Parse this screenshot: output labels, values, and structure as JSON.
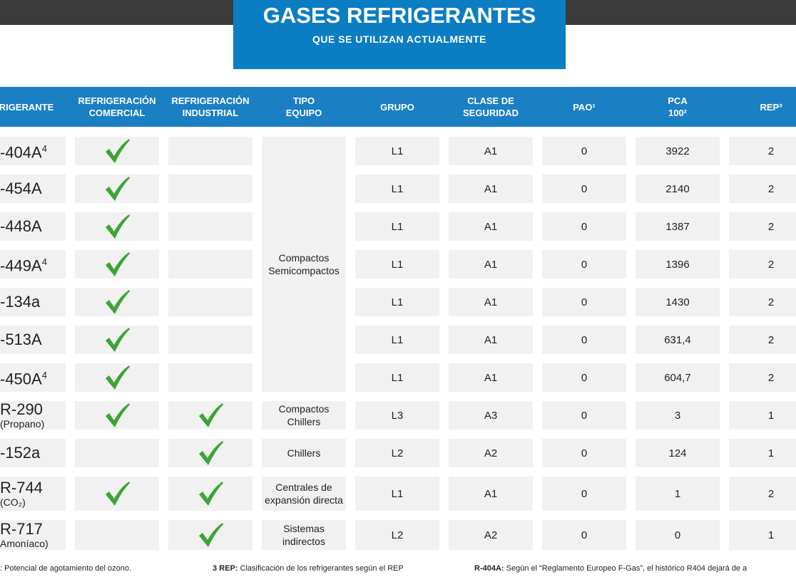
{
  "header": {
    "title": "GASES REFRIGERANTES",
    "subtitle": "QUE SE UTILIZAN ACTUALMENTE"
  },
  "table": {
    "columns": [
      [
        "FRIGERANTE"
      ],
      [
        "REFRIGERACIÓN",
        "COMERCIAL"
      ],
      [
        "REFRIGERACIÓN",
        "INDUSTRIAL"
      ],
      [
        "TIPO",
        "EQUIPO"
      ],
      [
        "GRUPO"
      ],
      [
        "CLASE DE",
        "SEGURIDAD"
      ],
      [
        "PAO¹"
      ],
      [
        "PCA",
        "100²"
      ],
      [
        "REP³"
      ]
    ],
    "rows": [
      {
        "name": "-404A",
        "sup": "4",
        "note": null,
        "comercial": true,
        "industrial": false,
        "tipo": [
          "Compactos",
          "Semicompactos"
        ],
        "grupo": "L1",
        "clase": "A1",
        "pao": "0",
        "pca": "3922",
        "rep": "2"
      },
      {
        "name": "-454A",
        "sup": null,
        "note": null,
        "comercial": true,
        "industrial": false,
        "tipo": null,
        "grupo": "L1",
        "clase": "A1",
        "pao": "0",
        "pca": "2140",
        "rep": "2"
      },
      {
        "name": "-448A",
        "sup": null,
        "note": null,
        "comercial": true,
        "industrial": false,
        "tipo": null,
        "grupo": "L1",
        "clase": "A1",
        "pao": "0",
        "pca": "1387",
        "rep": "2"
      },
      {
        "name": "-449A",
        "sup": "4",
        "note": null,
        "comercial": true,
        "industrial": false,
        "tipo": null,
        "grupo": "L1",
        "clase": "A1",
        "pao": "0",
        "pca": "1396",
        "rep": "2"
      },
      {
        "name": "-134a",
        "sup": null,
        "note": null,
        "comercial": true,
        "industrial": false,
        "tipo": null,
        "grupo": "L1",
        "clase": "A1",
        "pao": "0",
        "pca": "1430",
        "rep": "2"
      },
      {
        "name": "-513A",
        "sup": null,
        "note": null,
        "comercial": true,
        "industrial": false,
        "tipo": null,
        "grupo": "L1",
        "clase": "A1",
        "pao": "0",
        "pca": "631,4",
        "rep": "2"
      },
      {
        "name": "-450A",
        "sup": "4",
        "note": null,
        "comercial": true,
        "industrial": false,
        "tipo": null,
        "grupo": "L1",
        "clase": "A1",
        "pao": "0",
        "pca": "604,7",
        "rep": "2"
      },
      {
        "name": "R-290",
        "sup": null,
        "note": "(Propano)",
        "comercial": true,
        "industrial": true,
        "tipo": [
          "Compactos",
          "Chillers"
        ],
        "grupo": "L3",
        "clase": "A3",
        "pao": "0",
        "pca": "3",
        "rep": "1"
      },
      {
        "name": "-152a",
        "sup": null,
        "note": null,
        "comercial": false,
        "industrial": true,
        "tipo": [
          "Chillers"
        ],
        "grupo": "L2",
        "clase": "A2",
        "pao": "0",
        "pca": "124",
        "rep": "1"
      },
      {
        "name": "R-744",
        "sup": null,
        "note": "(CO₂)",
        "comercial": true,
        "industrial": true,
        "tipo": [
          "Centrales de",
          "expansión directa"
        ],
        "grupo": "L1",
        "clase": "A1",
        "pao": "0",
        "pca": "1",
        "rep": "2"
      },
      {
        "name": "R-717",
        "sup": null,
        "note": "Amoníaco)",
        "comercial": false,
        "industrial": true,
        "tipo": [
          "Sistemas",
          "indirectos"
        ],
        "grupo": "L2",
        "clase": "A2",
        "pao": "0",
        "pca": "0",
        "rep": "1"
      }
    ]
  },
  "footer": [
    {
      "label": null,
      "text": ": Potencial de agotamiento del ozono."
    },
    {
      "label": "3 REP:",
      "text": " Clasificación de los refrigerantes según el REP"
    },
    {
      "label": "R-404A:",
      "text": " Según el “Reglamento Europeo F-Gas”, el histórico R404 dejará de a"
    }
  ]
}
